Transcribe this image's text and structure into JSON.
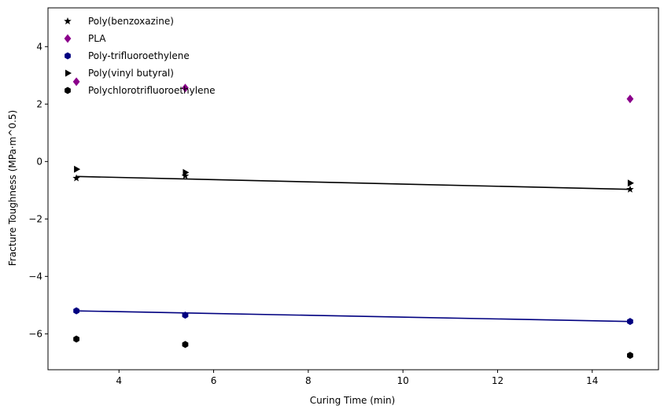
{
  "chart_data": {
    "type": "scatter",
    "title": "",
    "xlabel": "Curing Time (min)",
    "ylabel": "Fracture Toughness (MPa·m^0.5)",
    "xlim": [
      2.5,
      15.4
    ],
    "ylim": [
      -7.25,
      5.35
    ],
    "xticks": [
      4,
      6,
      8,
      10,
      12,
      14
    ],
    "yticks": [
      -6,
      -4,
      -2,
      0,
      2,
      4
    ],
    "grid": false,
    "legend_position": "top-left",
    "series": [
      {
        "name": "Poly(benzoxazine)",
        "marker": "star",
        "color": "#000000",
        "x": [
          3.1,
          5.4,
          14.8
        ],
        "y": [
          -0.58,
          -0.5,
          -0.97
        ]
      },
      {
        "name": "PLA",
        "marker": "diamond",
        "color": "#8b008b",
        "x": [
          3.1,
          5.4,
          14.8
        ],
        "y": [
          2.78,
          2.56,
          2.18
        ]
      },
      {
        "name": "Poly-trifluoroethylene",
        "marker": "hexagon",
        "color": "#000080",
        "x": [
          3.1,
          5.4,
          14.8
        ],
        "y": [
          -5.2,
          -5.35,
          -5.57
        ]
      },
      {
        "name": "Poly(vinyl butyral)",
        "marker": "triangle-right",
        "color": "#000000",
        "x": [
          3.1,
          5.4,
          14.8
        ],
        "y": [
          -0.27,
          -0.38,
          -0.75
        ]
      },
      {
        "name": "Polychlorotrifluoroethylene",
        "marker": "hexagon",
        "color": "#000000",
        "x": [
          3.1,
          5.4,
          14.8
        ],
        "y": [
          -6.18,
          -6.37,
          -6.75
        ]
      }
    ],
    "trend_lines": [
      {
        "color": "#000000",
        "x": [
          3.1,
          14.8
        ],
        "y": [
          -0.52,
          -0.97
        ]
      },
      {
        "color": "#000080",
        "x": [
          3.1,
          14.8
        ],
        "y": [
          -5.2,
          -5.57
        ]
      }
    ]
  }
}
